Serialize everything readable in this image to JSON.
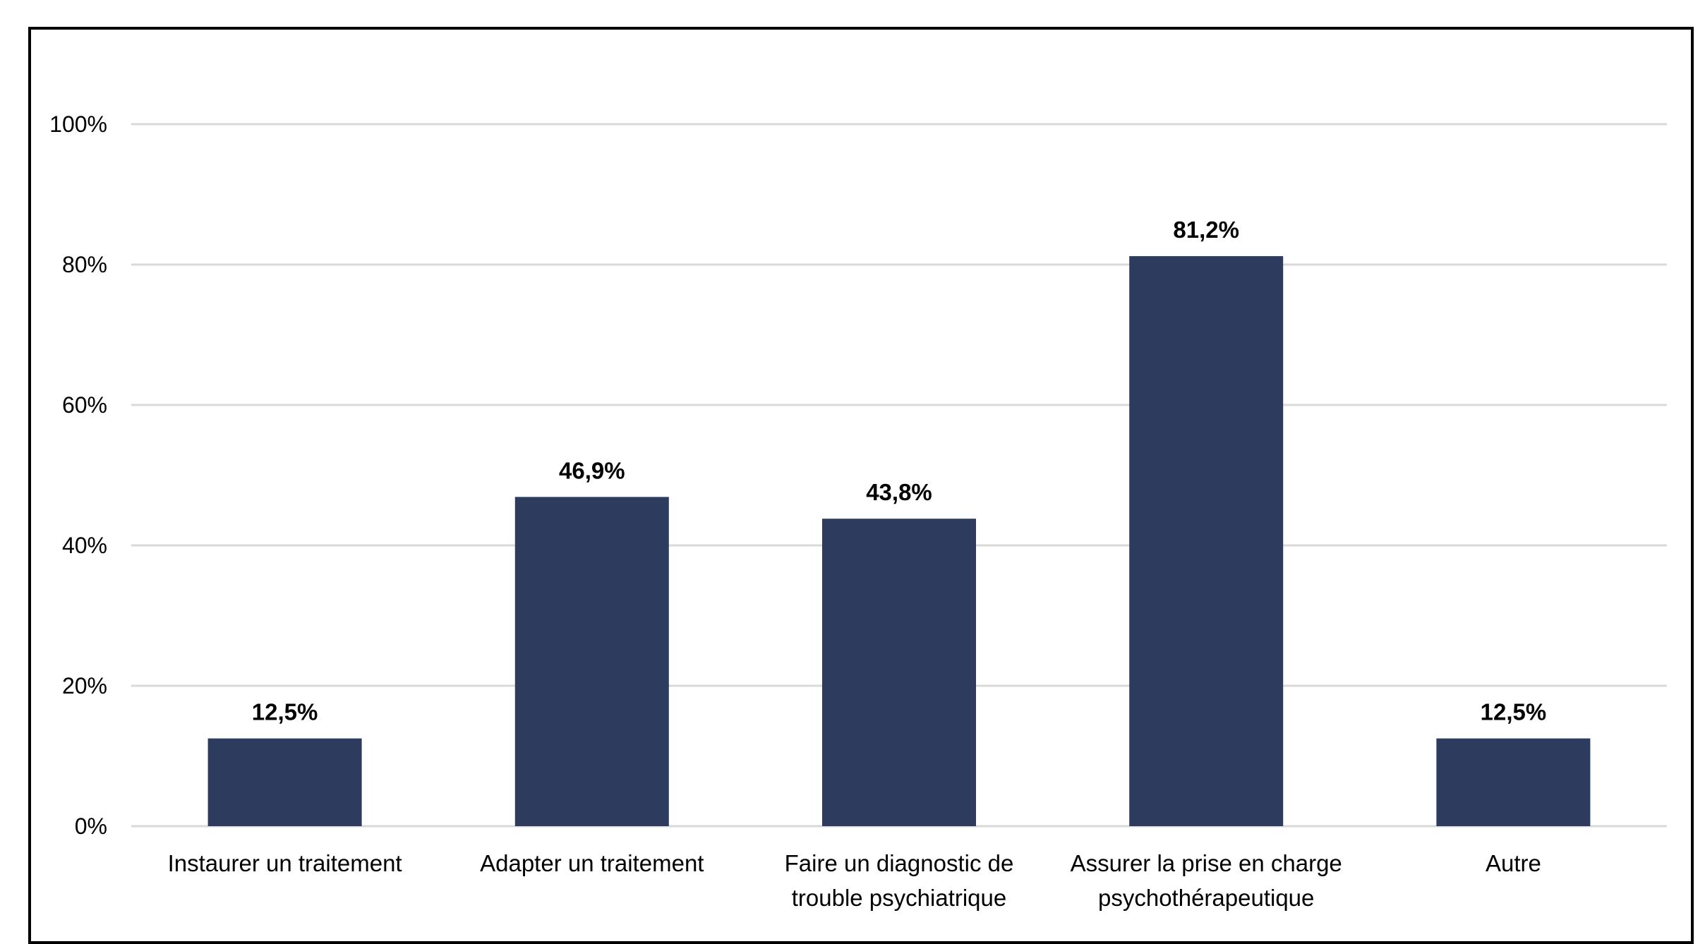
{
  "chart_data": {
    "type": "bar",
    "categories": [
      [
        "Instaurer un traitement"
      ],
      [
        "Adapter un traitement"
      ],
      [
        "Faire un diagnostic de",
        "trouble psychiatrique"
      ],
      [
        "Assurer la prise en charge",
        "psychothérapeutique"
      ],
      [
        "Autre"
      ]
    ],
    "values": [
      12.5,
      46.9,
      43.8,
      81.2,
      12.5
    ],
    "data_labels": [
      "12,5%",
      "46,9%",
      "43,8%",
      "81,2%",
      "12,5%"
    ],
    "ylim": [
      0,
      100
    ],
    "yticks": [
      0,
      20,
      40,
      60,
      80,
      100
    ],
    "ytick_labels": [
      "0%",
      "20%",
      "40%",
      "60%",
      "80%",
      "100%"
    ],
    "grid": true,
    "legend": "none",
    "bar_color": "#2c3b5e",
    "grid_color": "#d9d9d9"
  }
}
